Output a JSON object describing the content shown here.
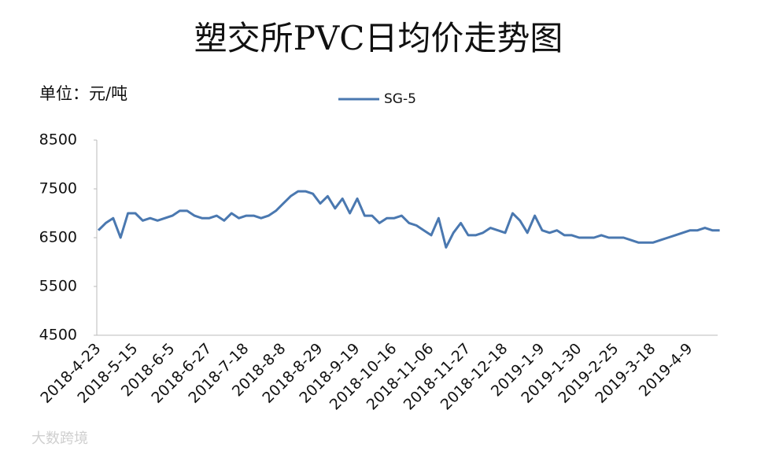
{
  "chart_data": {
    "type": "line",
    "title": "塑交所PVC日均价走势图",
    "unit_label": "单位：元/吨",
    "watermark": "大数跨境",
    "categories": [
      "2018-4-23",
      null,
      null,
      null,
      null,
      "2018-5-15",
      null,
      null,
      null,
      null,
      "2018-6-5",
      null,
      null,
      null,
      null,
      "2018-6-27",
      null,
      null,
      null,
      null,
      "2018-7-18",
      null,
      null,
      null,
      null,
      "2018-8-8",
      null,
      null,
      null,
      null,
      "2018-8-29",
      null,
      null,
      null,
      null,
      "2018-9-19",
      null,
      null,
      null,
      null,
      "2018-10-16",
      null,
      null,
      null,
      null,
      "2018-11-06",
      null,
      null,
      null,
      null,
      "2018-11-27",
      null,
      null,
      null,
      null,
      "2018-12-18",
      null,
      null,
      null,
      null,
      "2019-1-9",
      null,
      null,
      null,
      null,
      "2019-1-30",
      null,
      null,
      null,
      null,
      "2019-2-25",
      null,
      null,
      null,
      null,
      "2019-3-18",
      null,
      null,
      null,
      null,
      "2019-4-9",
      null,
      null,
      null,
      null
    ],
    "series": [
      {
        "name": "SG-5",
        "color": "#4a78b0",
        "values": [
          6650,
          6800,
          6900,
          6500,
          7000,
          7000,
          6850,
          6900,
          6850,
          6900,
          6950,
          7050,
          7050,
          6950,
          6900,
          6900,
          6950,
          6850,
          7000,
          6900,
          6950,
          6950,
          6900,
          6950,
          7050,
          7200,
          7350,
          7450,
          7450,
          7400,
          7200,
          7350,
          7100,
          7300,
          7000,
          7300,
          6950,
          6950,
          6800,
          6900,
          6900,
          6950,
          6800,
          6750,
          6650,
          6550,
          6900,
          6300,
          6600,
          6800,
          6550,
          6550,
          6600,
          6700,
          6650,
          6600,
          7000,
          6850,
          6600,
          6950,
          6650,
          6600,
          6650,
          6550,
          6550,
          6500,
          6500,
          6500,
          6550,
          6500,
          6500,
          6500,
          6450,
          6400,
          6400,
          6400,
          6450,
          6500,
          6550,
          6600,
          6650,
          6650,
          6700,
          6650,
          6650
        ]
      }
    ],
    "ylim": [
      4500,
      8500
    ],
    "yticks": [
      4500,
      5500,
      6500,
      7500,
      8500
    ],
    "grid": false,
    "legend": "top"
  }
}
